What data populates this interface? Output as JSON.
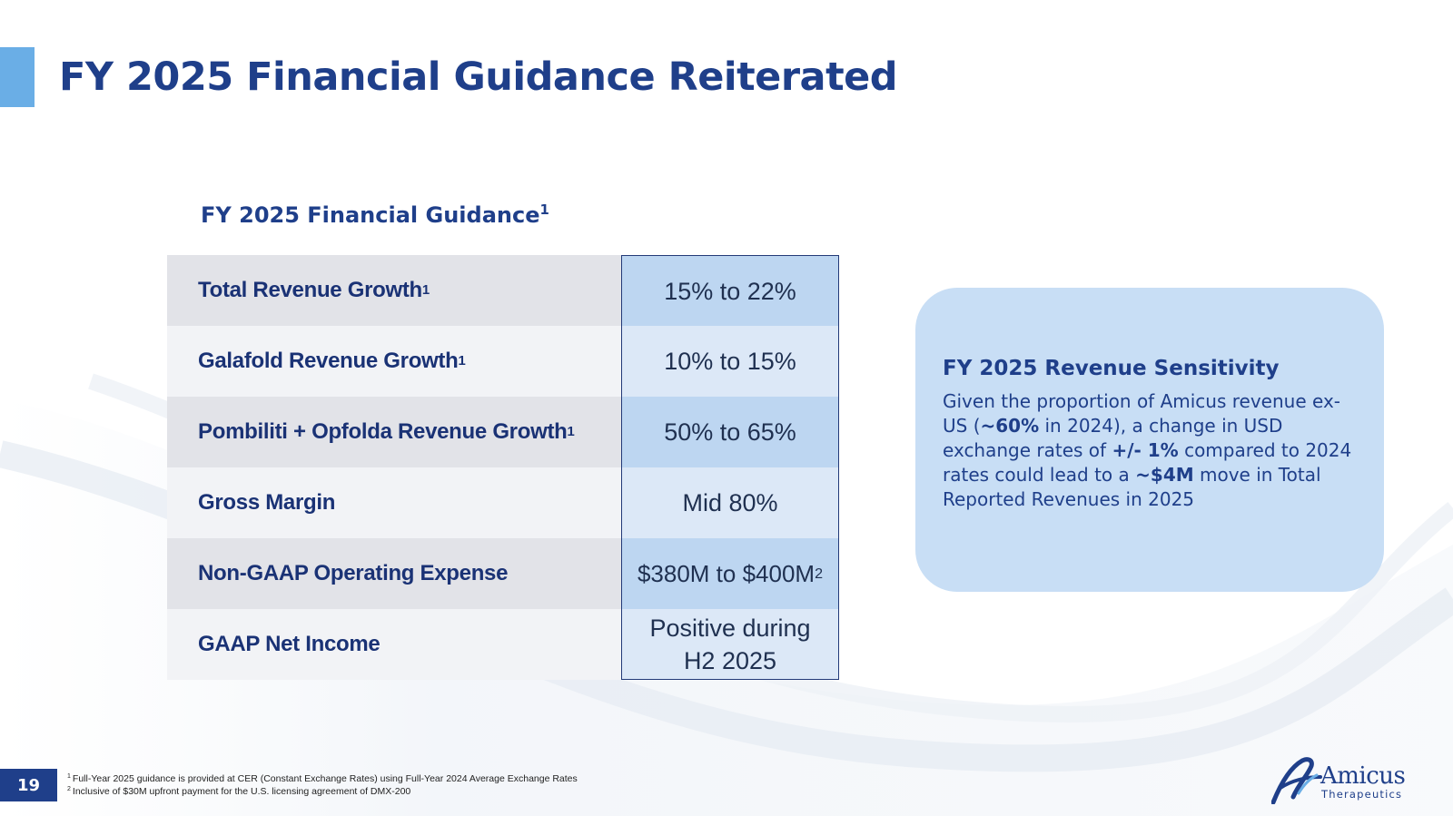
{
  "header": {
    "title": "FY 2025 Financial Guidance Reiterated"
  },
  "guidance_table": {
    "title": "FY 2025 Financial Guidance",
    "title_footnote": "1",
    "rows": [
      {
        "label": "Total Revenue Growth",
        "label_footnote": "1",
        "value": "15% to 22%",
        "value_footnote": ""
      },
      {
        "label": "Galafold Revenue Growth",
        "label_footnote": "1",
        "value": "10% to 15%",
        "value_footnote": ""
      },
      {
        "label": "Pombiliti + Opfolda Revenue Growth",
        "label_footnote": "1",
        "value": "50% to 65%",
        "value_footnote": ""
      },
      {
        "label": "Gross Margin",
        "label_footnote": "",
        "value": "Mid 80%",
        "value_footnote": ""
      },
      {
        "label": "Non-GAAP Operating Expense",
        "label_footnote": "",
        "value": "$380M to $400M",
        "value_footnote": "2"
      },
      {
        "label": "GAAP Net Income",
        "label_footnote": "",
        "value_line1": "Positive during",
        "value_line2": "H2 2025"
      }
    ]
  },
  "sensitivity": {
    "title": "FY 2025 Revenue Sensitivity",
    "body": {
      "t1": "Given the proportion of Amicus revenue ex-US (",
      "b1": "~60%",
      "t2": " in 2024), a change in USD exchange rates of ",
      "b2": "+/- 1%",
      "t3": " compared to 2024 rates could lead to a ",
      "b3": "~$4M",
      "t4": " move in Total Reported Revenues in 2025"
    }
  },
  "footer": {
    "page_number": "19",
    "footnotes": [
      {
        "num": "1",
        "text": "Full-Year 2025 guidance is provided at CER (Constant Exchange Rates) using Full-Year 2024 Average Exchange Rates"
      },
      {
        "num": "2",
        "text": "Inclusive of $30M upfront payment for the U.S. licensing agreement of DMX-200"
      }
    ],
    "logo": {
      "name": "Amicus",
      "tagline": "Therapeutics"
    }
  },
  "colors": {
    "brand_navy": "#1f3f8a",
    "accent_light_blue": "#6aaee6",
    "sensitivity_box": "#c8def5"
  }
}
